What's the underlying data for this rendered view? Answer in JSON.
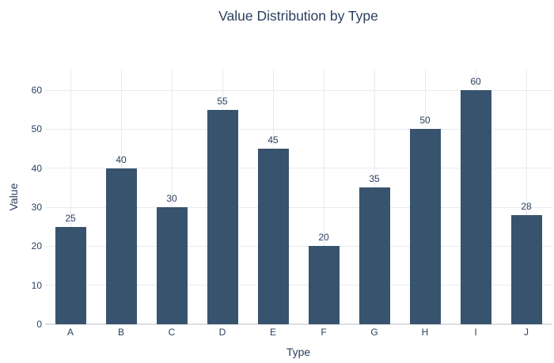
{
  "title": "Value Distribution by Type",
  "chart_data": {
    "type": "bar",
    "title": "Value Distribution by Type",
    "xlabel": "Type",
    "ylabel": "Value",
    "categories": [
      "A",
      "B",
      "C",
      "D",
      "E",
      "F",
      "G",
      "H",
      "I",
      "J"
    ],
    "values": [
      25,
      40,
      30,
      55,
      45,
      20,
      35,
      50,
      60,
      28
    ],
    "yticks": [
      0,
      10,
      20,
      30,
      40,
      50,
      60
    ],
    "ylim": [
      0,
      65.3
    ],
    "grid": true,
    "legend": false,
    "value_labels_shown": true,
    "colors": {
      "bar": "#37536d",
      "text": "#2a3f5f",
      "grid": "#e7eaee",
      "zero_line": "#dbdfe5",
      "background": "#ffffff"
    }
  }
}
